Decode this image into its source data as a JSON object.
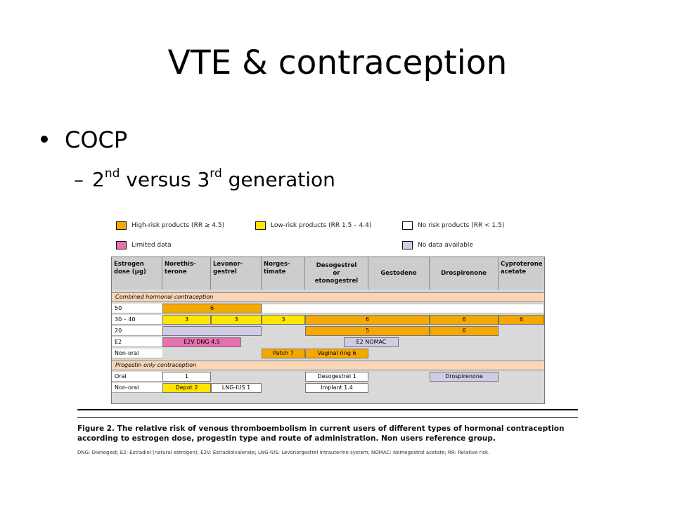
{
  "slide": {
    "title": "VTE & contraception",
    "bullet": "COCP",
    "sub_bullet": {
      "dash": "–",
      "part1": "2",
      "sup1": "nd",
      "part2": " versus 3",
      "sup2": "rd",
      "part3": " generation"
    }
  },
  "figure": {
    "legend": [
      {
        "label": "High-risk products (RR ≥ 4.5)",
        "color": "#f5a800"
      },
      {
        "label": "Low-risk products (RR 1.5 – 4.4)",
        "color": "#ffe600"
      },
      {
        "label": "No risk products (RR < 1.5)",
        "color": "#ffffff"
      },
      {
        "label": "Limited data",
        "color": "#e86fb0"
      },
      {
        "label": "No data available",
        "color": "#cfcde6"
      }
    ],
    "headers": [
      "Estrogen\ndose (µg)",
      "Norethis-\nterone",
      "Levonor-\ngestrel",
      "Norges-\ntimate",
      "Desogestrel\nor\netonogestrel",
      "Gestodene",
      "Drospirenone",
      "Cyproterone\nacetate"
    ],
    "sections": {
      "combined": "Combined hormonal contraception",
      "progestin": "Progestin only contraception"
    },
    "rows": [
      "50",
      "30 – 40",
      "20",
      "E2",
      "Non-oral",
      "Oral",
      "Non-oral"
    ],
    "cells": {
      "r50": "6",
      "r30_net": "3",
      "r30_lng": "3",
      "r30_ngm": "3",
      "r30_dsg": "6",
      "r30_drsp": "6",
      "r30_cpa": "6",
      "r20_dsg": "5",
      "r20_drsp": "6",
      "e2v": "E2V DNG 4.5",
      "e2nomac": "E2 NOMAC",
      "patch": "Patch 7",
      "ring": "Vaginal ring 6",
      "oral_net": "1",
      "oral_dsg": "Desogestrel 1",
      "oral_drsp": "Drospirenone",
      "depot": "Depot 2",
      "lngius": "LNG-IUS 1",
      "implant": "Implant 1.4"
    },
    "caption": "Figure 2. The relative risk of venous thromboembolism in current users of different types of hormonal contraception according to estrogen dose, progestin type and route of administration. Non users reference group.",
    "abbreviations": "DNG: Dienogest; E2: Estradiol (natural estrogen); E2V: Estradiolvalerate; LNG-IUS: Levonorgestrel intrauterine system; NOMAC: Nomegestrol acetate; RR: Relative risk."
  }
}
